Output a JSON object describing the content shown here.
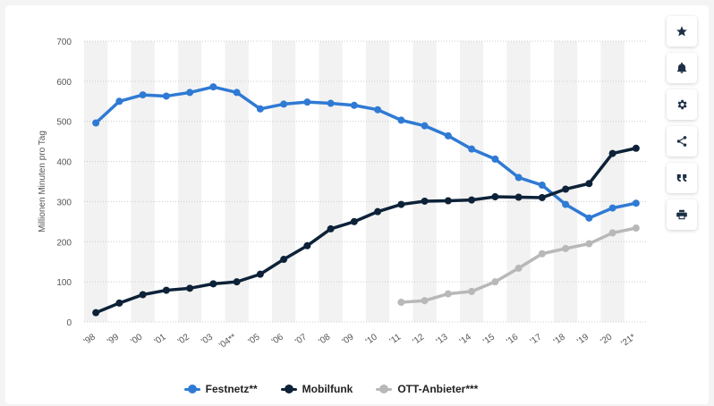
{
  "chart_data": {
    "type": "line",
    "title": "",
    "xlabel": "",
    "ylabel": "Millionen Minuten pro Tag",
    "ylim": [
      0,
      700
    ],
    "yticks": [
      0,
      100,
      200,
      300,
      400,
      500,
      600,
      700
    ],
    "grid": true,
    "categories": [
      "'98",
      "'99",
      "'00",
      "'01",
      "'02",
      "'03",
      "'04**",
      "'05",
      "'06",
      "'07",
      "'08",
      "'09",
      "'10",
      "'11",
      "'12",
      "'13",
      "'14",
      "'15",
      "'16",
      "'17",
      "'18",
      "'19",
      "'20",
      "'21*"
    ],
    "series": [
      {
        "name": "Festnetz**",
        "color": "#2f7ad4",
        "values": [
          496,
          550,
          566,
          563,
          572,
          586,
          572,
          531,
          543,
          548,
          545,
          540,
          529,
          503,
          489,
          464,
          431,
          406,
          360,
          341,
          293,
          259,
          284,
          296
        ]
      },
      {
        "name": "Mobilfunk",
        "color": "#0d2238",
        "values": [
          23,
          47,
          68,
          79,
          84,
          95,
          100,
          119,
          156,
          190,
          232,
          250,
          275,
          293,
          301,
          302,
          304,
          312,
          311,
          310,
          331,
          345,
          420,
          433
        ]
      },
      {
        "name": "OTT-Anbieter***",
        "color": "#b8b8b8",
        "values": [
          null,
          null,
          null,
          null,
          null,
          null,
          null,
          null,
          null,
          null,
          null,
          null,
          null,
          49,
          53,
          70,
          76,
          100,
          134,
          170,
          183,
          195,
          222,
          234
        ]
      }
    ],
    "legend_position": "bottom-center"
  },
  "toolbar": {
    "icons": [
      "star-icon",
      "bell-icon",
      "gear-icon",
      "share-icon",
      "quote-icon",
      "print-icon"
    ]
  },
  "colors": {
    "band": "#f2f2f2",
    "grid": "#cccccc",
    "text": "#555555"
  }
}
